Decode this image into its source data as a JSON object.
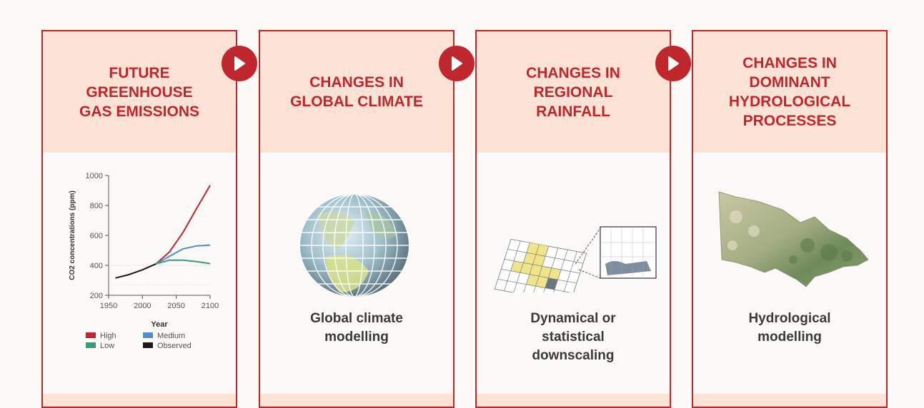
{
  "panels": [
    {
      "title": "FUTURE\nGREENHOUSE\nGAS EMISSIONS",
      "caption": ""
    },
    {
      "title": "CHANGES IN\nGLOBAL CLIMATE",
      "caption": "Global climate\nmodelling"
    },
    {
      "title": "CHANGES IN\nREGIONAL\nRAINFALL",
      "caption": "Dynamical or\nstatistical\ndownscaling"
    },
    {
      "title": "CHANGES IN\nDOMINANT\nHYDROLOGICAL\nPROCESSES",
      "caption": "Hydrological\nmodelling"
    }
  ],
  "arrows": [
    "play-arrow-icon",
    "play-arrow-icon",
    "play-arrow-icon"
  ],
  "colors": {
    "accent": "#c0272d",
    "header_bg": "#fbe2d5",
    "high": "#c0272d",
    "medium": "#4e8fc8",
    "low": "#3c9a7a",
    "observed": "#1a1a1a"
  },
  "chart_data": {
    "type": "line",
    "title": "",
    "xlabel": "Year",
    "ylabel": "CO2 concentrations (ppm)",
    "xlim": [
      1950,
      2100
    ],
    "ylim": [
      200,
      1000
    ],
    "xticks": [
      1950,
      2000,
      2050,
      2100
    ],
    "yticks": [
      200,
      400,
      600,
      800,
      1000
    ],
    "legend": [
      "High",
      "Medium",
      "Low",
      "Observed"
    ],
    "series": [
      {
        "name": "Observed",
        "x": [
          1960,
          1980,
          2000,
          2010,
          2020
        ],
        "y": [
          315,
          338,
          370,
          390,
          410
        ]
      },
      {
        "name": "High",
        "x": [
          2020,
          2040,
          2060,
          2080,
          2100
        ],
        "y": [
          410,
          490,
          620,
          780,
          935
        ]
      },
      {
        "name": "Medium",
        "x": [
          2020,
          2040,
          2060,
          2080,
          2100
        ],
        "y": [
          410,
          460,
          510,
          530,
          535
        ]
      },
      {
        "name": "Low",
        "x": [
          2020,
          2040,
          2060,
          2080,
          2100
        ],
        "y": [
          410,
          435,
          435,
          425,
          412
        ]
      }
    ]
  }
}
